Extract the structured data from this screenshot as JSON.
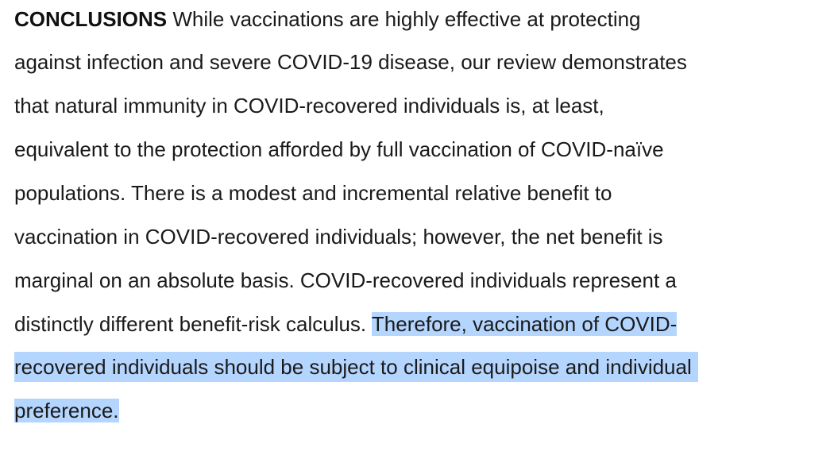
{
  "document": {
    "heading": "CONCLUSIONS",
    "lines": [
      " While vaccinations are highly effective at protecting",
      "against infection and severe COVID-19 disease, our review demonstrates",
      "that natural immunity in COVID-recovered individuals is, at least,",
      "equivalent to the protection afforded by full vaccination of COVID-naïve",
      "populations. There is a modest and incremental relative benefit to",
      "vaccination in COVID-recovered individuals; however, the net benefit is",
      "marginal on an absolute basis. COVID-recovered individuals represent a",
      "distinctly different benefit-risk calculus. "
    ],
    "highlighted": [
      "Therefore, vaccination of COVID-",
      "recovered individuals should be subject to clinical equipoise and individual",
      "preference."
    ]
  },
  "colors": {
    "text": "#1a1a1a",
    "selection_highlight": "#b4d5fe",
    "background": "#ffffff"
  }
}
